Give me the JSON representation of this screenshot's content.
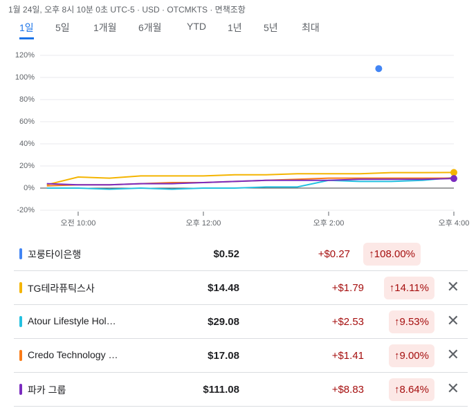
{
  "header": {
    "timestamp": "1월 24일, 오후 8시 10분 0초 UTC-5 · USD · OTCMKTS · 면책조항"
  },
  "tabs": [
    "1일",
    "5일",
    "1개월",
    "6개월",
    "YTD",
    "1년",
    "5년",
    "최대"
  ],
  "selected_tab": 0,
  "chart_data": {
    "type": "line",
    "xlim": [
      545,
      960
    ],
    "xticks": [
      {
        "value": 600,
        "label": "오전 10:00"
      },
      {
        "value": 720,
        "label": "오후 12:00"
      },
      {
        "value": 840,
        "label": "오후 2:00"
      },
      {
        "value": 960,
        "label": "오후 4:00"
      }
    ],
    "ylim": [
      -20,
      120
    ],
    "yticks": [
      {
        "value": -20,
        "label": "-20%"
      },
      {
        "value": 0,
        "label": "0%"
      },
      {
        "value": 20,
        "label": "20%"
      },
      {
        "value": 40,
        "label": "40%"
      },
      {
        "value": 60,
        "label": "60%"
      },
      {
        "value": 80,
        "label": "80%"
      },
      {
        "value": 100,
        "label": "100%"
      },
      {
        "value": 120,
        "label": "120%"
      }
    ],
    "grid": true,
    "series": [
      {
        "name": "꼬룽타이은행",
        "color": "#4285f4",
        "x": [
          888
        ],
        "values": [
          108
        ]
      },
      {
        "name": "TG테라퓨틱스사",
        "color": "#f4b400",
        "marker_end": true,
        "x": [
          570,
          600,
          630,
          660,
          690,
          720,
          750,
          780,
          810,
          840,
          870,
          900,
          930,
          960
        ],
        "values": [
          3,
          10,
          9,
          11,
          11,
          11,
          12,
          12,
          13,
          13,
          13,
          14,
          14,
          14.11
        ]
      },
      {
        "name": "Atour Lifestyle Hol…",
        "color": "#24c1e0",
        "x": [
          570,
          600,
          630,
          660,
          690,
          720,
          750,
          780,
          810,
          840,
          870,
          900,
          930,
          960
        ],
        "values": [
          0,
          0,
          -1,
          0,
          -1,
          0,
          0,
          1,
          1,
          7,
          6,
          6,
          7,
          9.53
        ]
      },
      {
        "name": "Credo Technology …",
        "color": "#fa7b17",
        "x": [
          570,
          600,
          630,
          660,
          690,
          720,
          750,
          780,
          810,
          840,
          870,
          900,
          930,
          960
        ],
        "values": [
          2,
          3,
          3,
          4,
          5,
          5,
          6,
          7,
          8,
          9,
          9,
          9,
          9,
          9
        ]
      },
      {
        "name": "파카 그룹",
        "color": "#7b2cbf",
        "marker_end": true,
        "x": [
          570,
          600,
          630,
          660,
          690,
          720,
          750,
          780,
          810,
          840,
          870,
          900,
          930,
          960
        ],
        "values": [
          4,
          3,
          3,
          4,
          4,
          5,
          6,
          7,
          7,
          7,
          8,
          8,
          8,
          8.64
        ]
      }
    ]
  },
  "table": {
    "rows": [
      {
        "price": "$0.52",
        "change": "+$0.27",
        "percent": "↑108.00%",
        "removable": false
      },
      {
        "price": "$14.48",
        "change": "+$1.79",
        "percent": "↑14.11%",
        "removable": true
      },
      {
        "price": "$29.08",
        "change": "+$2.53",
        "percent": "↑9.53%",
        "removable": true
      },
      {
        "price": "$17.08",
        "change": "+$1.41",
        "percent": "↑9.00%",
        "removable": true
      },
      {
        "price": "$111.08",
        "change": "+$8.83",
        "percent": "↑8.64%",
        "removable": true
      }
    ]
  }
}
